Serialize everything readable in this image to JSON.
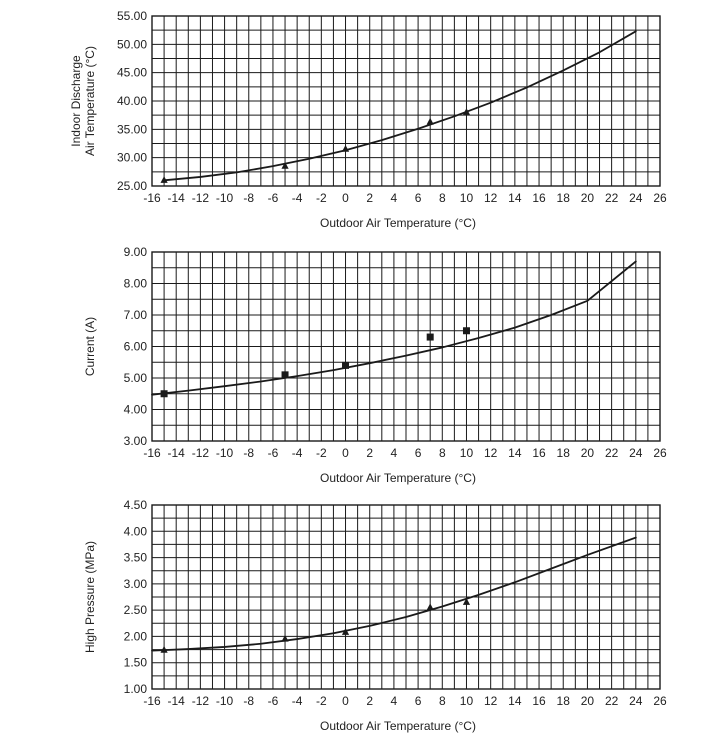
{
  "figure": {
    "line_color": "#1a1a1a",
    "grid_color": "#1a1a1a",
    "background": "#ffffff"
  },
  "chart_data": [
    {
      "type": "scatter",
      "name": "discharge-temperature",
      "title": "",
      "xlabel": "Outdoor Air Temperature (°C)",
      "ylabel": [
        "Indoor Discharge",
        "Air Temperature (°C)"
      ],
      "xlim": [
        -16,
        26
      ],
      "ylim": [
        25,
        55
      ],
      "x_ticks": [
        -16,
        -14,
        -12,
        -10,
        -8,
        -6,
        -4,
        -2,
        0,
        2,
        4,
        6,
        8,
        10,
        12,
        14,
        16,
        18,
        20,
        22,
        24,
        26
      ],
      "x_tick_labels": [
        "-16",
        "-14",
        "-12",
        "-10",
        "-8",
        "-6",
        "-4",
        "-2",
        "0",
        "2",
        "4",
        "6",
        "8",
        "10",
        "12",
        "14",
        "16",
        "18",
        "20",
        "22",
        "24",
        "26"
      ],
      "y_ticks": [
        25,
        30,
        35,
        40,
        45,
        50,
        55
      ],
      "y_tick_labels": [
        "25.00",
        "30.00",
        "35.00",
        "40.00",
        "45.00",
        "50.00",
        "55.00"
      ],
      "marker": "triangle",
      "points": [
        {
          "x": -15,
          "y": 26.0
        },
        {
          "x": -5,
          "y": 28.5
        },
        {
          "x": 0,
          "y": 31.5
        },
        {
          "x": 7,
          "y": 36.3
        },
        {
          "x": 10,
          "y": 38.0
        }
      ],
      "fit_curve": {
        "x": [
          -15,
          -12,
          -9,
          -6,
          -3,
          0,
          3,
          6,
          9,
          12,
          15,
          18,
          21,
          24
        ],
        "y": [
          26.0,
          26.6,
          27.4,
          28.5,
          29.8,
          31.3,
          33.1,
          35.1,
          37.3,
          39.7,
          42.4,
          45.4,
          48.6,
          52.3
        ]
      },
      "grid": true
    },
    {
      "type": "scatter",
      "name": "current",
      "title": "",
      "xlabel": "Outdoor Air Temperature (°C)",
      "ylabel": [
        "Current (A)"
      ],
      "xlim": [
        -16,
        26
      ],
      "ylim": [
        3,
        9
      ],
      "x_ticks": [
        -16,
        -14,
        -12,
        -10,
        -8,
        -6,
        -4,
        -2,
        0,
        2,
        4,
        6,
        8,
        10,
        12,
        14,
        16,
        18,
        20,
        22,
        24,
        26
      ],
      "x_tick_labels": [
        "-16",
        "-14",
        "-12",
        "-10",
        "-8",
        "-6",
        "-4",
        "-2",
        "0",
        "2",
        "4",
        "6",
        "8",
        "10",
        "12",
        "14",
        "16",
        "18",
        "20",
        "22",
        "24",
        "26"
      ],
      "y_ticks": [
        3,
        4,
        5,
        6,
        7,
        8,
        9
      ],
      "y_tick_labels": [
        "3.00",
        "4.00",
        "5.00",
        "6.00",
        "7.00",
        "8.00",
        "9.00"
      ],
      "marker": "square",
      "points": [
        {
          "x": -15,
          "y": 4.5
        },
        {
          "x": -5,
          "y": 5.1
        },
        {
          "x": 0,
          "y": 5.4
        },
        {
          "x": 7,
          "y": 6.3
        },
        {
          "x": 10,
          "y": 6.5
        }
      ],
      "fit_curve": {
        "x": [
          -16,
          -13,
          -10,
          -7,
          -4,
          -1,
          2,
          5,
          8,
          11,
          14,
          17,
          20,
          24
        ],
        "y": [
          4.47,
          4.6,
          4.74,
          4.89,
          5.06,
          5.25,
          5.47,
          5.71,
          5.97,
          6.27,
          6.6,
          7.0,
          7.45,
          8.7
        ]
      },
      "grid": true
    },
    {
      "type": "scatter",
      "name": "high-pressure",
      "title": "",
      "xlabel": "Outdoor Air Temperature (°C)",
      "ylabel": [
        "High Pressure (MPa)"
      ],
      "xlim": [
        -16,
        26
      ],
      "ylim": [
        1.0,
        4.5
      ],
      "x_ticks": [
        -16,
        -14,
        -12,
        -10,
        -8,
        -6,
        -4,
        -2,
        0,
        2,
        4,
        6,
        8,
        10,
        12,
        14,
        16,
        18,
        20,
        22,
        24,
        26
      ],
      "x_tick_labels": [
        "-16",
        "-14",
        "-12",
        "-10",
        "-8",
        "-6",
        "-4",
        "-2",
        "0",
        "2",
        "4",
        "6",
        "8",
        "10",
        "12",
        "14",
        "16",
        "18",
        "20",
        "22",
        "24",
        "26"
      ],
      "y_ticks": [
        1.0,
        1.5,
        2.0,
        2.5,
        3.0,
        3.5,
        4.0,
        4.5
      ],
      "y_tick_labels": [
        "1.00",
        "1.50",
        "2.00",
        "2.50",
        "3.00",
        "3.50",
        "4.00",
        "4.50"
      ],
      "marker": "triangle",
      "points": [
        {
          "x": -15,
          "y": 1.74
        },
        {
          "x": -5,
          "y": 1.95
        },
        {
          "x": 0,
          "y": 2.08
        },
        {
          "x": 7,
          "y": 2.55
        },
        {
          "x": 10,
          "y": 2.65
        }
      ],
      "fit_curve": {
        "x": [
          -16,
          -13,
          -10,
          -7,
          -4,
          -1,
          2,
          5,
          8,
          11,
          14,
          17,
          20,
          24
        ],
        "y": [
          1.73,
          1.76,
          1.8,
          1.86,
          1.95,
          2.06,
          2.2,
          2.37,
          2.57,
          2.79,
          3.03,
          3.29,
          3.55,
          3.88
        ]
      },
      "grid": true
    }
  ]
}
